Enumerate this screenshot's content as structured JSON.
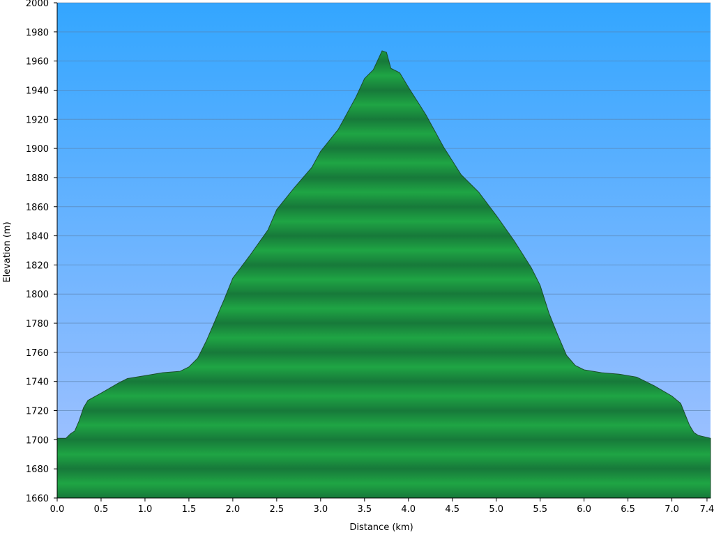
{
  "chart_data": {
    "type": "area",
    "x_label": "Distance (km)",
    "y_label": "Elevation (m)",
    "x": [
      0,
      0.1,
      0.15,
      0.2,
      0.25,
      0.3,
      0.35,
      0.5,
      0.7,
      0.8,
      1.0,
      1.2,
      1.4,
      1.5,
      1.6,
      1.7,
      1.8,
      1.9,
      2.0,
      2.1,
      2.2,
      2.4,
      2.5,
      2.7,
      2.9,
      3.0,
      3.2,
      3.4,
      3.5,
      3.6,
      3.7,
      3.75,
      3.8,
      3.9,
      4.0,
      4.2,
      4.4,
      4.6,
      4.8,
      5.0,
      5.2,
      5.4,
      5.5,
      5.6,
      5.7,
      5.8,
      5.9,
      6.0,
      6.2,
      6.4,
      6.6,
      6.8,
      7.0,
      7.1,
      7.2,
      7.25,
      7.3,
      7.44
    ],
    "values": [
      1701,
      1701,
      1704,
      1706,
      1713,
      1722,
      1727,
      1732,
      1739,
      1742,
      1744,
      1746,
      1747,
      1750,
      1756,
      1768,
      1782,
      1796,
      1811,
      1819,
      1827,
      1844,
      1858,
      1873,
      1887,
      1898,
      1913,
      1935,
      1948,
      1954,
      1967,
      1966,
      1955,
      1952,
      1942,
      1923,
      1901,
      1882,
      1870,
      1854,
      1837,
      1818,
      1806,
      1787,
      1772,
      1758,
      1751,
      1748,
      1746,
      1745,
      1743,
      1737,
      1730,
      1725,
      1710,
      1705,
      1703,
      1701
    ],
    "color": "#1fa544",
    "xlim": [
      0,
      7.44
    ],
    "ylim": [
      1660,
      2000
    ],
    "xticks": [
      {
        "value": 0,
        "label": "0.0"
      },
      0.5,
      {
        "value": 1,
        "label": "1.0"
      },
      1.5,
      {
        "value": 2,
        "label": "2.0"
      },
      2.5,
      {
        "value": 3,
        "label": "3.0"
      },
      3.5,
      {
        "value": 4,
        "label": "4.0"
      },
      4.5,
      {
        "value": 5,
        "label": "5.0"
      },
      5.5,
      {
        "value": 6,
        "label": "6.0"
      },
      6.5,
      {
        "value": 7,
        "label": "7.0"
      },
      7.4
    ],
    "yticks": [
      1660,
      1680,
      1700,
      1720,
      1740,
      1760,
      1780,
      1800,
      1820,
      1840,
      1860,
      1880,
      1900,
      1920,
      1940,
      1960,
      1980,
      2000
    ],
    "grid": true
  }
}
